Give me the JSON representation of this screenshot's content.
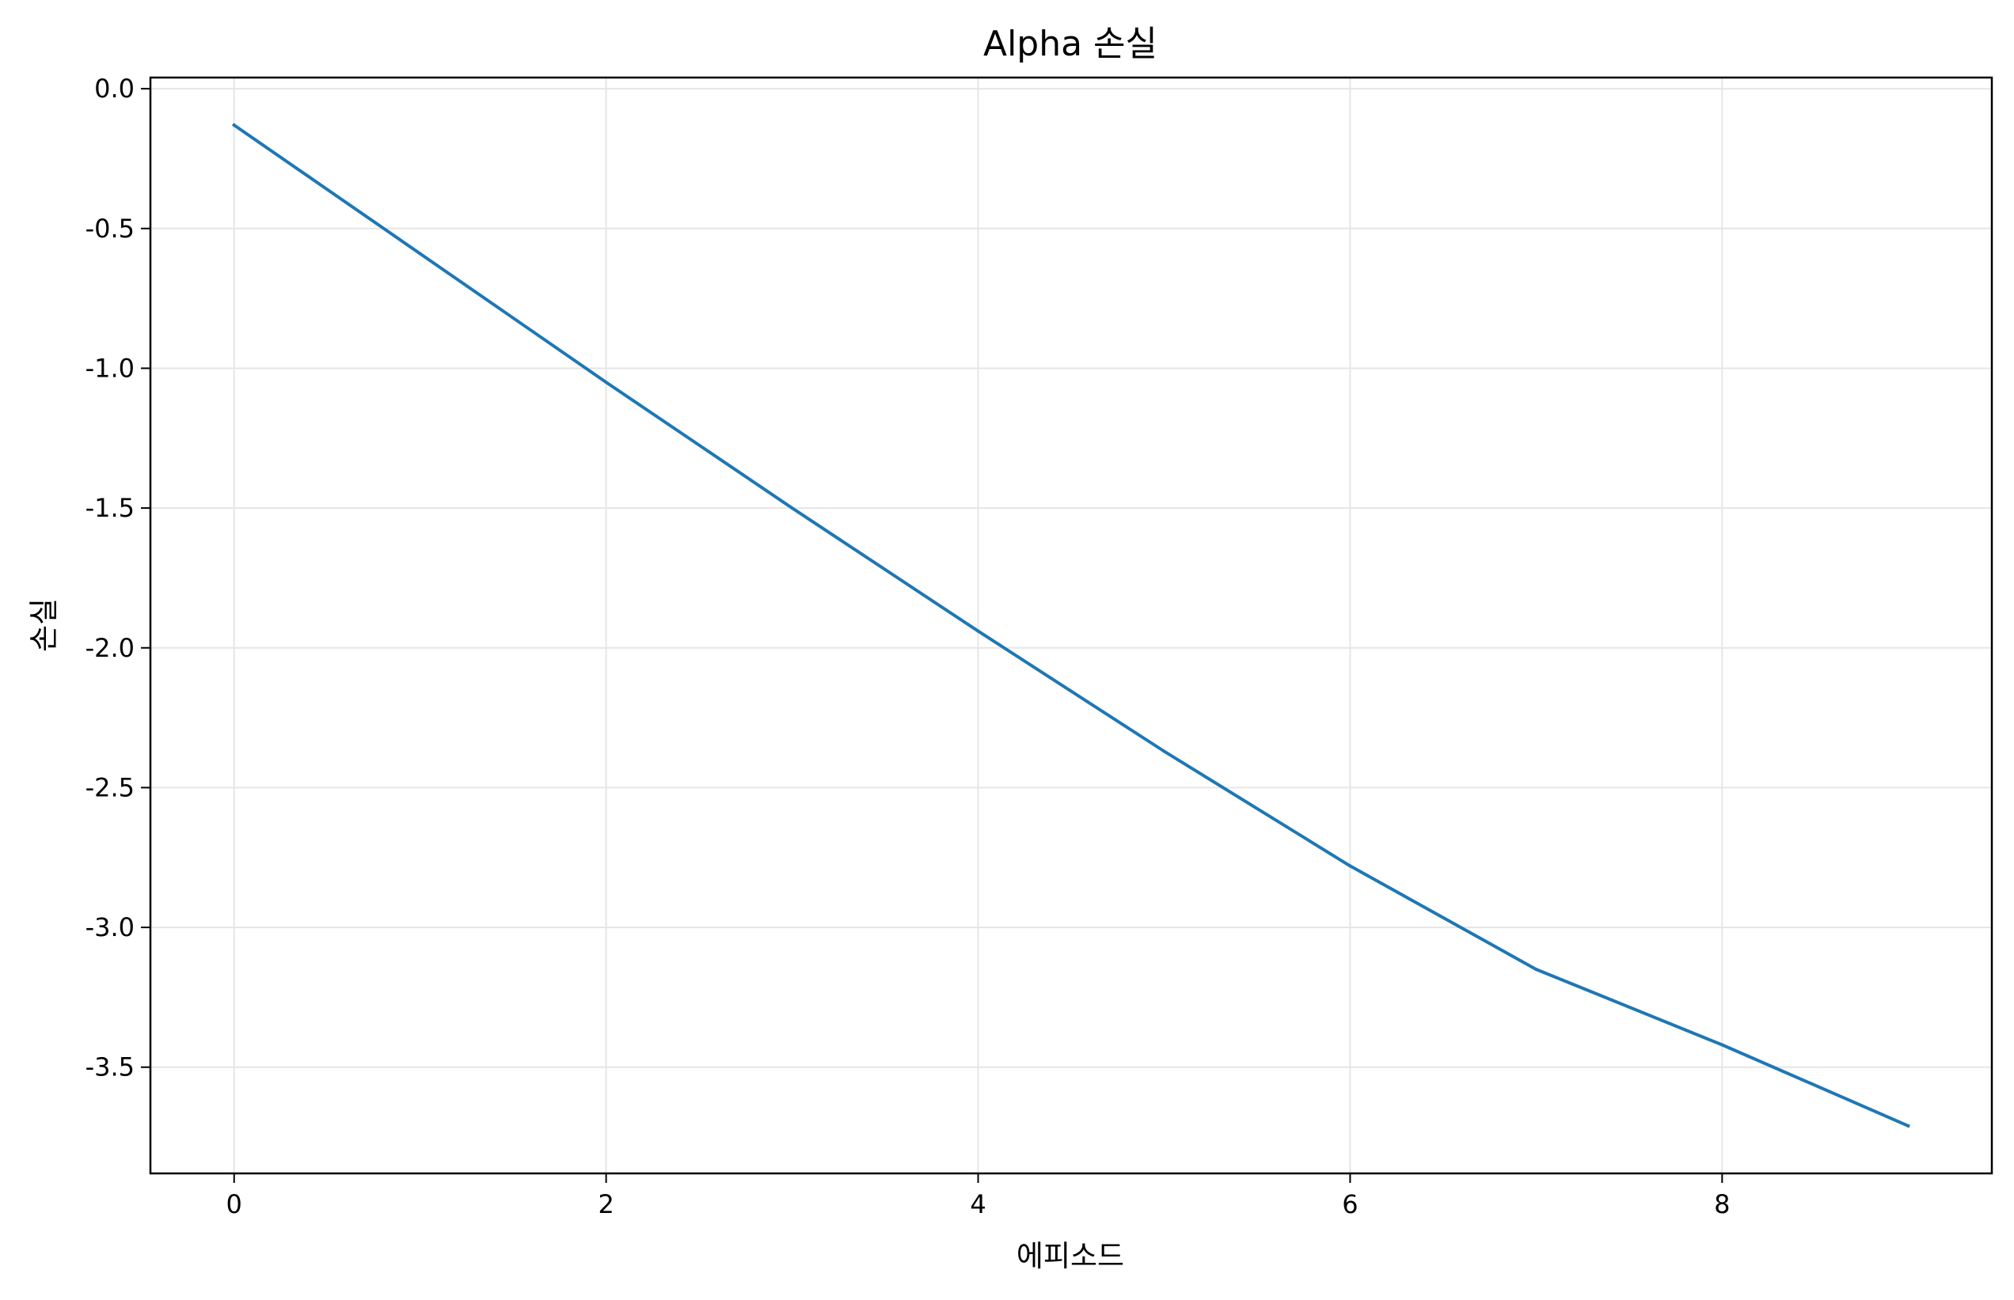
{
  "chart_data": {
    "type": "line",
    "title": "Alpha 손실",
    "xlabel": "에피소드",
    "ylabel": "손실",
    "xlim": [
      -0.45,
      9.45
    ],
    "ylim": [
      -3.88,
      0.04
    ],
    "xticks": [
      0,
      2,
      4,
      6,
      8
    ],
    "xtick_labels": [
      "0",
      "2",
      "4",
      "6",
      "8"
    ],
    "yticks": [
      0.0,
      -0.5,
      -1.0,
      -1.5,
      -2.0,
      -2.5,
      -3.0,
      -3.5
    ],
    "ytick_labels": [
      "0.0",
      "-0.5",
      "-1.0",
      "-1.5",
      "-2.0",
      "-2.5",
      "-3.0",
      "-3.5"
    ],
    "grid": true,
    "series": [
      {
        "color": "#1f77b4",
        "x": [
          0,
          1,
          2,
          3,
          4,
          5,
          6,
          7,
          8,
          9
        ],
        "y": [
          -0.13,
          -0.59,
          -1.05,
          -1.5,
          -1.94,
          -2.37,
          -2.78,
          -3.15,
          -3.42,
          -3.71
        ]
      }
    ]
  }
}
